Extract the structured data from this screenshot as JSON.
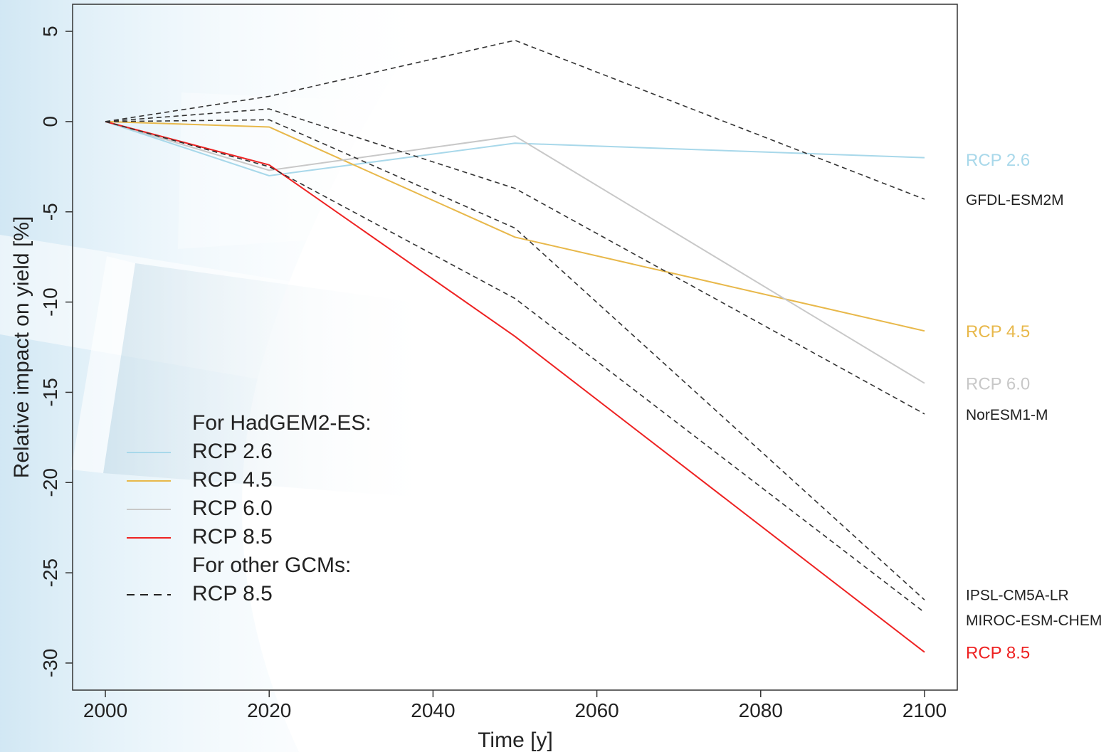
{
  "chart_data": {
    "type": "line",
    "xlabel": "Time [y]",
    "ylabel": "Relative impact on yield [%]",
    "xlim": [
      1996,
      2104
    ],
    "ylim": [
      -31.5,
      6.5
    ],
    "x_ticks": [
      2000,
      2020,
      2040,
      2060,
      2080,
      2100
    ],
    "y_ticks": [
      5,
      0,
      -5,
      -10,
      -15,
      -20,
      -25,
      -30
    ],
    "x": [
      2000,
      2020,
      2050,
      2100
    ],
    "grid": false,
    "legend_position": "bottom-left",
    "series": [
      {
        "name": "RCP 2.6",
        "group": "hadgem",
        "color": "#a8d8ea",
        "dash": "solid",
        "values": [
          0,
          -3.0,
          -1.2,
          -2.0
        ]
      },
      {
        "name": "RCP 4.5",
        "group": "hadgem",
        "color": "#e8b84a",
        "dash": "solid",
        "values": [
          0,
          -0.3,
          -6.4,
          -11.6
        ]
      },
      {
        "name": "RCP 6.0",
        "group": "hadgem",
        "color": "#c8c8c8",
        "dash": "solid",
        "values": [
          0,
          -2.7,
          -0.8,
          -14.5
        ]
      },
      {
        "name": "RCP 8.5",
        "group": "hadgem",
        "color": "#ee2222",
        "dash": "solid",
        "values": [
          0,
          -2.4,
          -11.9,
          -29.4
        ]
      },
      {
        "name": "GFDL-ESM2M",
        "group": "other",
        "color": "#333333",
        "dash": "dashed",
        "values": [
          0,
          1.4,
          4.5,
          -4.3
        ]
      },
      {
        "name": "NorESM1-M",
        "group": "other",
        "color": "#333333",
        "dash": "dashed",
        "values": [
          0,
          0.7,
          -3.7,
          -16.2
        ]
      },
      {
        "name": "IPSL-CM5A-LR",
        "group": "other",
        "color": "#333333",
        "dash": "dashed",
        "values": [
          0,
          0.1,
          -5.9,
          -26.5
        ]
      },
      {
        "name": "MIROC-ESM-CHEM",
        "group": "other",
        "color": "#333333",
        "dash": "dashed",
        "values": [
          0,
          -2.5,
          -9.8,
          -27.2
        ]
      }
    ],
    "end_labels": [
      {
        "text": "RCP 2.6",
        "color": "#a8d8ea",
        "y": -2.2,
        "big": true
      },
      {
        "text": "GFDL-ESM2M",
        "color": "#222222",
        "y": -4.4,
        "big": false
      },
      {
        "text": "RCP 4.5",
        "color": "#e8b84a",
        "y": -11.7,
        "big": true
      },
      {
        "text": "RCP 6.0",
        "color": "#c8c8c8",
        "y": -14.6,
        "big": true
      },
      {
        "text": "NorESM1-M",
        "color": "#222222",
        "y": -16.3,
        "big": false
      },
      {
        "text": "IPSL-CM5A-LR",
        "color": "#222222",
        "y": -26.3,
        "big": false
      },
      {
        "text": "MIROC-ESM-CHEM",
        "color": "#222222",
        "y": -27.7,
        "big": false
      },
      {
        "text": "RCP 8.5",
        "color": "#ee2222",
        "y": -29.5,
        "big": true
      }
    ],
    "legend": {
      "header_hadgem": "For HadGEM2-ES:",
      "header_other": "For other GCMs:",
      "entries": [
        {
          "type": "header",
          "text": "For HadGEM2-ES:"
        },
        {
          "type": "line",
          "text": "RCP 2.6",
          "color": "#a8d8ea",
          "dash": "solid"
        },
        {
          "type": "line",
          "text": "RCP 4.5",
          "color": "#e8b84a",
          "dash": "solid"
        },
        {
          "type": "line",
          "text": "RCP 6.0",
          "color": "#c8c8c8",
          "dash": "solid"
        },
        {
          "type": "line",
          "text": "RCP 8.5",
          "color": "#ee2222",
          "dash": "solid"
        },
        {
          "type": "header",
          "text": "For other GCMs:"
        },
        {
          "type": "line",
          "text": "RCP 8.5",
          "color": "#222222",
          "dash": "dashed"
        }
      ]
    }
  }
}
